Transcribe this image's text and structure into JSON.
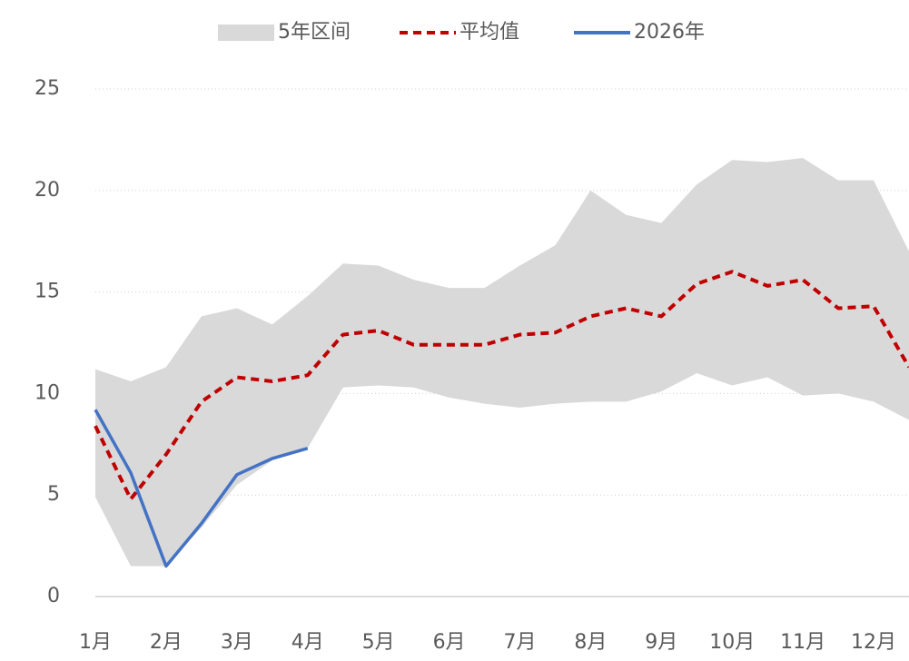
{
  "chart_data": {
    "type": "line",
    "categories": [
      "1月",
      null,
      "2月",
      null,
      "3月",
      null,
      "4月",
      null,
      "5月",
      null,
      "6月",
      null,
      "7月",
      null,
      "8月",
      null,
      "9月",
      null,
      "10月",
      null,
      "11月",
      null,
      "12月",
      null
    ],
    "series": [
      {
        "name": "5年区间",
        "color": "#d9d9d9",
        "style": "band",
        "low": [
          4.9,
          1.5,
          1.5,
          3.4,
          5.5,
          6.7,
          7.3,
          10.3,
          10.4,
          10.3,
          9.8,
          9.5,
          9.3,
          9.5,
          9.6,
          9.6,
          10.1,
          11.0,
          10.4,
          10.8,
          9.9,
          10.0,
          9.6,
          8.7
        ],
        "high": [
          11.2,
          10.6,
          11.3,
          13.8,
          14.2,
          13.4,
          14.8,
          16.4,
          16.3,
          15.6,
          15.2,
          15.2,
          16.3,
          17.3,
          20.0,
          18.8,
          18.4,
          20.3,
          21.5,
          21.4,
          21.6,
          20.5,
          20.5,
          17.0
        ]
      },
      {
        "name": "平均值",
        "color": "#c00000",
        "style": "dashed",
        "values": [
          8.4,
          4.8,
          7.0,
          9.6,
          10.8,
          10.6,
          10.9,
          12.9,
          13.1,
          12.4,
          12.4,
          12.4,
          12.9,
          13.0,
          13.8,
          14.2,
          13.8,
          15.4,
          16.0,
          15.3,
          15.6,
          14.2,
          14.3,
          11.3
        ]
      },
      {
        "name": "2026年",
        "color": "#4472c4",
        "style": "solid",
        "values": [
          9.2,
          6.1,
          1.5,
          3.6,
          6.0,
          6.8,
          7.3,
          null,
          null,
          null,
          null,
          null,
          null,
          null,
          null,
          null,
          null,
          null,
          null,
          null,
          null,
          null,
          null,
          null
        ]
      }
    ],
    "ylim": [
      0,
      25
    ],
    "yticks": [
      0,
      5,
      10,
      15,
      20,
      25
    ],
    "grid": true
  }
}
